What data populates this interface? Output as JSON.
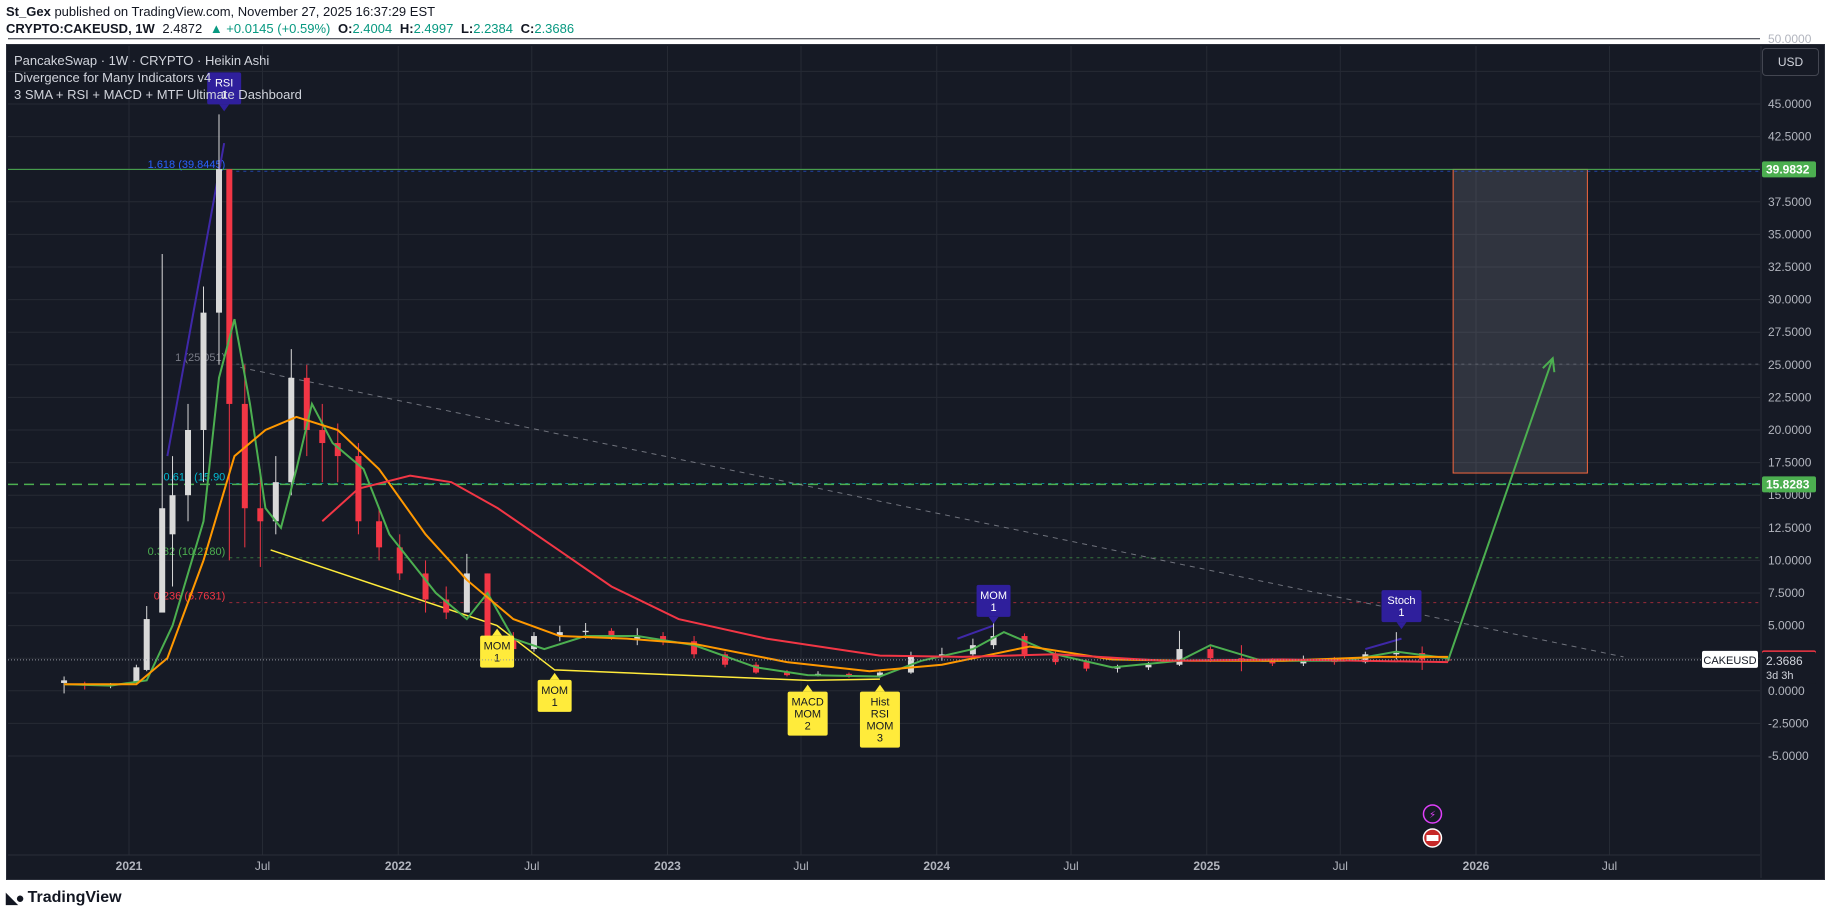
{
  "header": {
    "publisher": "St_Gex",
    "published_text": "published on TradingView.com, November 27, 2025 16:37:29 EST",
    "symbol": "CRYPTO:CAKEUSD, 1W",
    "last": "2.4872",
    "change": "▲ +0.0145 (+0.59%)",
    "open_label": "O:",
    "open": "2.4004",
    "high_label": "H:",
    "high": "2.4997",
    "low_label": "L:",
    "low": "2.2384",
    "close_label": "C:",
    "close": "2.3686"
  },
  "legend": {
    "line1": "PancakeSwap · 1W · CRYPTO · Heikin Ashi",
    "line2": "Divergence for Many Indicators v4",
    "line3": "3 SMA + RSI + MACD + MTF Ultimate Dashboard"
  },
  "currency_button": "USD",
  "footer": {
    "brand": "TradingView",
    "logo_icon": "tradingview-logo-icon"
  },
  "colors": {
    "background": "#161a25",
    "up": "#d9d9d9",
    "down": "#f23645",
    "sma_fast": "#4caf50",
    "sma_mid": "#ff9800",
    "sma_slow": "#f23645",
    "trendline": "#ffeb3b",
    "divergence_bear": "#3f28a8",
    "tp_box": "#f4673e"
  },
  "chart_data": {
    "type": "candlestick",
    "symbol": "CAKEUSD",
    "interval": "1W",
    "style": "Heikin Ashi",
    "x_tick_labels": [
      "2021",
      "Jul",
      "2022",
      "Jul",
      "2023",
      "Jul",
      "2024",
      "Jul",
      "2025",
      "Jul",
      "2026",
      "Jul"
    ],
    "y_tick_labels": [
      "50.0000",
      "47.5000",
      "45.0000",
      "42.5000",
      "40.0000",
      "37.5000",
      "35.0000",
      "32.5000",
      "30.0000",
      "27.5000",
      "25.0000",
      "22.5000",
      "20.0000",
      "17.5000",
      "15.0000",
      "12.5000",
      "10.0000",
      "7.5000",
      "5.0000",
      "2.5000",
      "0.0000",
      "-2.5000",
      "-5.0000"
    ],
    "ylim": [
      -7.5,
      52.5
    ],
    "grid": true,
    "price_labels": [
      {
        "value": 39.9832,
        "text": "39.9832",
        "color": "#4caf50"
      },
      {
        "value": 15.8283,
        "text": "15.8283",
        "color": "#4caf50"
      },
      {
        "value": 2.4872,
        "text": "2.4872",
        "color": "#f23645"
      }
    ],
    "symbol_tag": {
      "name": "CAKEUSD",
      "price": "2.3686",
      "countdown": "3d 3h"
    },
    "fib_levels": [
      {
        "ratio": "1.618",
        "price": 39.8445,
        "label": "1.618 (39.8445)",
        "color": "#2962ff"
      },
      {
        "ratio": "1",
        "price": 25.051,
        "label": "1 (25.051)",
        "color": "#787b86"
      },
      {
        "ratio": "0.618",
        "price": 15.9,
        "label": "0.618 (15.90",
        "color": "#00bcd4"
      },
      {
        "ratio": "0.382",
        "price": 10.2,
        "label": "0.382 (10.2180)",
        "color": "#4caf50"
      },
      {
        "ratio": "0.236",
        "price": 6.7631,
        "label": "0.236 (6.7631)",
        "color": "#f23645"
      }
    ],
    "horizontal_lines": [
      {
        "price": 39.9832,
        "style": "solid",
        "color": "#4caf50"
      },
      {
        "price": 15.8283,
        "style": "dashed",
        "color": "#4caf50"
      }
    ],
    "target_box": {
      "x_from": "2025-12",
      "x_to": "2026-06",
      "y_from": 16.7,
      "y_to": 39.9832
    },
    "projection_arrow": {
      "from": [
        "2025-11-24",
        2.3
      ],
      "to": [
        "2026-04",
        25.5
      ]
    },
    "divergence_labels": [
      {
        "text": [
          "RSI",
          "1"
        ],
        "kind": "bearish",
        "x": "2021-05-10",
        "y": 44.2
      },
      {
        "text": [
          "MOM",
          "1"
        ],
        "kind": "bullish",
        "x": "2022-05-15",
        "y": 5.0
      },
      {
        "text": [
          "MOM",
          "1"
        ],
        "kind": "bullish",
        "x": "2022-08-01",
        "y": 1.6
      },
      {
        "text": [
          "MACD",
          "MOM",
          "2"
        ],
        "kind": "bullish",
        "x": "2023-07-10",
        "y": 0.7
      },
      {
        "text": [
          "Hist",
          "RSI",
          "MOM",
          "3"
        ],
        "kind": "bullish",
        "x": "2023-10-16",
        "y": 0.7
      },
      {
        "text": [
          "MOM",
          "1"
        ],
        "kind": "bearish",
        "x": "2024-03-18",
        "y": 4.9
      },
      {
        "text": [
          "Stoch",
          "1"
        ],
        "kind": "bearish",
        "x": "2025-09-22",
        "y": 4.5
      }
    ],
    "series": [
      {
        "kind": "ohlc",
        "points": [
          {
            "date": "2020-10-05",
            "o": 0.6,
            "h": 1.1,
            "l": -0.2,
            "c": 0.8
          },
          {
            "date": "2020-11-02",
            "o": 0.5,
            "h": 0.7,
            "l": 0.1,
            "c": 0.4
          },
          {
            "date": "2020-12-07",
            "o": 0.4,
            "h": 0.6,
            "l": 0.2,
            "c": 0.5
          },
          {
            "date": "2021-01-11",
            "o": 0.6,
            "h": 2.0,
            "l": 0.5,
            "c": 1.8
          },
          {
            "date": "2021-01-25",
            "o": 1.6,
            "h": 6.5,
            "l": 1.5,
            "c": 5.5
          },
          {
            "date": "2021-02-15",
            "o": 6.0,
            "h": 33.5,
            "l": 6.0,
            "c": 14.0
          },
          {
            "date": "2021-03-01",
            "o": 12.0,
            "h": 18.0,
            "l": 8.0,
            "c": 15.0
          },
          {
            "date": "2021-03-22",
            "o": 15.0,
            "h": 22.0,
            "l": 13.0,
            "c": 20.0
          },
          {
            "date": "2021-04-12",
            "o": 20.0,
            "h": 31.0,
            "l": 16.0,
            "c": 29.0
          },
          {
            "date": "2021-05-03",
            "o": 29.0,
            "h": 44.2,
            "l": 25.0,
            "c": 40.0
          },
          {
            "date": "2021-05-17",
            "o": 40.0,
            "h": 40.0,
            "l": 10.0,
            "c": 22.0
          },
          {
            "date": "2021-06-07",
            "o": 22.0,
            "h": 25.0,
            "l": 11.0,
            "c": 14.0
          },
          {
            "date": "2021-06-28",
            "o": 14.0,
            "h": 17.0,
            "l": 9.5,
            "c": 13.0
          },
          {
            "date": "2021-07-19",
            "o": 13.0,
            "h": 18.0,
            "l": 12.0,
            "c": 16.0
          },
          {
            "date": "2021-08-09",
            "o": 16.0,
            "h": 26.2,
            "l": 15.0,
            "c": 24.0
          },
          {
            "date": "2021-08-30",
            "o": 24.0,
            "h": 25.0,
            "l": 18.0,
            "c": 20.0
          },
          {
            "date": "2021-09-20",
            "o": 20.0,
            "h": 22.0,
            "l": 16.0,
            "c": 19.0
          },
          {
            "date": "2021-10-11",
            "o": 19.0,
            "h": 20.5,
            "l": 16.0,
            "c": 18.0
          },
          {
            "date": "2021-11-08",
            "o": 18.0,
            "h": 19.0,
            "l": 12.0,
            "c": 13.0
          },
          {
            "date": "2021-12-06",
            "o": 13.0,
            "h": 14.0,
            "l": 10.0,
            "c": 11.0
          },
          {
            "date": "2022-01-03",
            "o": 11.0,
            "h": 12.0,
            "l": 8.5,
            "c": 9.0
          },
          {
            "date": "2022-02-07",
            "o": 9.0,
            "h": 10.0,
            "l": 6.0,
            "c": 7.0
          },
          {
            "date": "2022-03-07",
            "o": 7.0,
            "h": 8.0,
            "l": 5.5,
            "c": 6.0
          },
          {
            "date": "2022-04-04",
            "o": 6.0,
            "h": 10.5,
            "l": 6.0,
            "c": 9.0
          },
          {
            "date": "2022-05-02",
            "o": 9.0,
            "h": 9.0,
            "l": 3.5,
            "c": 4.0
          },
          {
            "date": "2022-06-06",
            "o": 4.0,
            "h": 4.5,
            "l": 2.8,
            "c": 3.2
          },
          {
            "date": "2022-07-04",
            "o": 3.2,
            "h": 4.5,
            "l": 3.0,
            "c": 4.2
          },
          {
            "date": "2022-08-08",
            "o": 4.2,
            "h": 5.0,
            "l": 3.8,
            "c": 4.5
          },
          {
            "date": "2022-09-12",
            "o": 4.5,
            "h": 5.2,
            "l": 4.0,
            "c": 4.6
          },
          {
            "date": "2022-10-17",
            "o": 4.6,
            "h": 4.8,
            "l": 3.9,
            "c": 4.0
          },
          {
            "date": "2022-11-21",
            "o": 4.0,
            "h": 4.8,
            "l": 3.5,
            "c": 4.2
          },
          {
            "date": "2022-12-26",
            "o": 4.2,
            "h": 4.5,
            "l": 3.5,
            "c": 3.8
          },
          {
            "date": "2023-02-06",
            "o": 3.8,
            "h": 4.2,
            "l": 2.5,
            "c": 2.8
          },
          {
            "date": "2023-03-20",
            "o": 2.8,
            "h": 3.0,
            "l": 1.8,
            "c": 2.0
          },
          {
            "date": "2023-05-01",
            "o": 2.0,
            "h": 2.2,
            "l": 1.3,
            "c": 1.4
          },
          {
            "date": "2023-06-12",
            "o": 1.4,
            "h": 1.6,
            "l": 1.1,
            "c": 1.2
          },
          {
            "date": "2023-07-24",
            "o": 1.2,
            "h": 1.5,
            "l": 1.1,
            "c": 1.3
          },
          {
            "date": "2023-09-04",
            "o": 1.3,
            "h": 1.4,
            "l": 1.0,
            "c": 1.1
          },
          {
            "date": "2023-10-16",
            "o": 1.1,
            "h": 1.5,
            "l": 1.0,
            "c": 1.4
          },
          {
            "date": "2023-11-27",
            "o": 1.4,
            "h": 3.0,
            "l": 1.3,
            "c": 2.7
          },
          {
            "date": "2024-01-08",
            "o": 2.7,
            "h": 3.3,
            "l": 2.3,
            "c": 2.8
          },
          {
            "date": "2024-02-19",
            "o": 2.8,
            "h": 4.0,
            "l": 2.6,
            "c": 3.5
          },
          {
            "date": "2024-03-18",
            "o": 3.5,
            "h": 5.4,
            "l": 3.2,
            "c": 4.2
          },
          {
            "date": "2024-04-29",
            "o": 4.2,
            "h": 4.4,
            "l": 2.5,
            "c": 2.8
          },
          {
            "date": "2024-06-10",
            "o": 2.8,
            "h": 3.0,
            "l": 2.0,
            "c": 2.2
          },
          {
            "date": "2024-07-22",
            "o": 2.2,
            "h": 2.4,
            "l": 1.5,
            "c": 1.7
          },
          {
            "date": "2024-09-02",
            "o": 1.7,
            "h": 2.0,
            "l": 1.4,
            "c": 1.8
          },
          {
            "date": "2024-10-14",
            "o": 1.8,
            "h": 2.2,
            "l": 1.6,
            "c": 2.0
          },
          {
            "date": "2024-11-25",
            "o": 2.0,
            "h": 4.6,
            "l": 1.9,
            "c": 3.2
          },
          {
            "date": "2025-01-06",
            "o": 3.2,
            "h": 3.4,
            "l": 2.2,
            "c": 2.5
          },
          {
            "date": "2025-02-17",
            "o": 2.5,
            "h": 3.5,
            "l": 1.5,
            "c": 2.3
          },
          {
            "date": "2025-03-31",
            "o": 2.3,
            "h": 2.5,
            "l": 1.9,
            "c": 2.1
          },
          {
            "date": "2025-05-12",
            "o": 2.1,
            "h": 2.7,
            "l": 1.9,
            "c": 2.4
          },
          {
            "date": "2025-06-23",
            "o": 2.4,
            "h": 2.6,
            "l": 2.0,
            "c": 2.2
          },
          {
            "date": "2025-08-04",
            "o": 2.2,
            "h": 3.0,
            "l": 2.1,
            "c": 2.8
          },
          {
            "date": "2025-09-15",
            "o": 2.8,
            "h": 4.5,
            "l": 2.4,
            "c": 2.9
          },
          {
            "date": "2025-10-20",
            "o": 2.9,
            "h": 3.4,
            "l": 1.6,
            "c": 2.4
          },
          {
            "date": "2025-11-24",
            "o": 2.4,
            "h": 2.5,
            "l": 2.2,
            "c": 2.37
          }
        ]
      },
      {
        "kind": "sma_fast",
        "points": [
          [
            "2020-10-05",
            0.5
          ],
          [
            "2020-12-07",
            0.4
          ],
          [
            "2021-01-25",
            0.8
          ],
          [
            "2021-03-01",
            5
          ],
          [
            "2021-04-12",
            13
          ],
          [
            "2021-05-03",
            24
          ],
          [
            "2021-05-24",
            28.5
          ],
          [
            "2021-06-14",
            22
          ],
          [
            "2021-07-05",
            14
          ],
          [
            "2021-07-26",
            12.5
          ],
          [
            "2021-08-16",
            17
          ],
          [
            "2021-09-06",
            22
          ],
          [
            "2021-10-04",
            19
          ],
          [
            "2021-11-15",
            17
          ],
          [
            "2021-12-20",
            12
          ],
          [
            "2022-02-21",
            7.5
          ],
          [
            "2022-04-04",
            5.5
          ],
          [
            "2022-05-02",
            7.5
          ],
          [
            "2022-06-06",
            4
          ],
          [
            "2022-07-18",
            3.2
          ],
          [
            "2022-09-12",
            4.2
          ],
          [
            "2022-11-21",
            4.2
          ],
          [
            "2023-02-06",
            3.5
          ],
          [
            "2023-05-01",
            1.8
          ],
          [
            "2023-07-10",
            1.2
          ],
          [
            "2023-10-16",
            1.1
          ],
          [
            "2023-12-11",
            2.3
          ],
          [
            "2024-02-19",
            3.2
          ],
          [
            "2024-04-01",
            4.5
          ],
          [
            "2024-06-10",
            2.8
          ],
          [
            "2024-08-26",
            1.8
          ],
          [
            "2024-11-25",
            2.3
          ],
          [
            "2025-01-06",
            3.5
          ],
          [
            "2025-03-17",
            2.3
          ],
          [
            "2025-07-07",
            2.3
          ],
          [
            "2025-09-15",
            3.0
          ],
          [
            "2025-11-24",
            2.5
          ]
        ]
      },
      {
        "kind": "sma_mid",
        "points": [
          [
            "2020-10-05",
            0.5
          ],
          [
            "2021-01-11",
            0.5
          ],
          [
            "2021-02-22",
            2.5
          ],
          [
            "2021-04-12",
            10
          ],
          [
            "2021-05-24",
            18
          ],
          [
            "2021-07-05",
            20
          ],
          [
            "2021-08-16",
            21
          ],
          [
            "2021-10-11",
            20
          ],
          [
            "2021-12-06",
            17
          ],
          [
            "2022-02-07",
            12
          ],
          [
            "2022-04-04",
            8.5
          ],
          [
            "2022-06-06",
            5.5
          ],
          [
            "2022-08-08",
            4.2
          ],
          [
            "2022-11-07",
            4.0
          ],
          [
            "2023-02-06",
            3.6
          ],
          [
            "2023-06-12",
            2.2
          ],
          [
            "2023-10-02",
            1.5
          ],
          [
            "2024-01-08",
            2.0
          ],
          [
            "2024-05-06",
            3.4
          ],
          [
            "2024-08-26",
            2.4
          ],
          [
            "2024-12-09",
            2.3
          ],
          [
            "2025-04-14",
            2.3
          ],
          [
            "2025-08-25",
            2.6
          ],
          [
            "2025-11-24",
            2.6
          ]
        ]
      },
      {
        "kind": "sma_slow",
        "points": [
          [
            "2021-09-20",
            13
          ],
          [
            "2021-11-08",
            15.5
          ],
          [
            "2022-01-17",
            16.5
          ],
          [
            "2022-03-14",
            16
          ],
          [
            "2022-05-16",
            14
          ],
          [
            "2022-08-01",
            11
          ],
          [
            "2022-10-17",
            8
          ],
          [
            "2023-01-16",
            5.5
          ],
          [
            "2023-05-15",
            4.0
          ],
          [
            "2023-10-16",
            2.7
          ],
          [
            "2024-02-05",
            2.6
          ],
          [
            "2024-06-10",
            2.8
          ],
          [
            "2024-11-04",
            2.3
          ],
          [
            "2025-04-14",
            2.4
          ],
          [
            "2025-11-24",
            2.2
          ]
        ]
      }
    ]
  }
}
